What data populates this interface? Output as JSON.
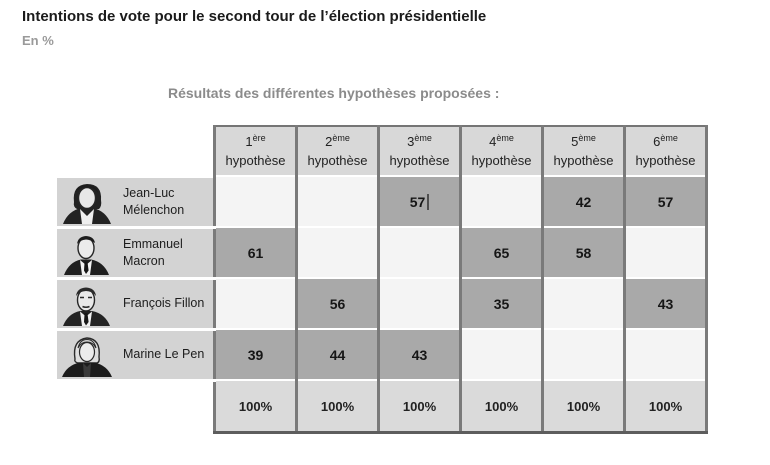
{
  "page": {
    "title": "Intentions de vote pour le second tour de l’élection présidentielle",
    "unit_label": "En %",
    "caption": "Résultats des différentes hypothèses proposées :"
  },
  "table": {
    "columns": [
      {
        "ordinal": "1",
        "suffix": "ère",
        "word": "hypothèse"
      },
      {
        "ordinal": "2",
        "suffix": "ème",
        "word": "hypothèse"
      },
      {
        "ordinal": "3",
        "suffix": "ème",
        "word": "hypothèse"
      },
      {
        "ordinal": "4",
        "suffix": "ème",
        "word": "hypothèse"
      },
      {
        "ordinal": "5",
        "suffix": "ème",
        "word": "hypothèse"
      },
      {
        "ordinal": "6",
        "suffix": "ème",
        "word": "hypothèse"
      }
    ],
    "rows": [
      {
        "name": "Jean-Luc Mélenchon",
        "values": [
          "",
          "",
          "57",
          "",
          "42",
          "57"
        ]
      },
      {
        "name": "Emmanuel Macron",
        "values": [
          "61",
          "",
          "",
          "65",
          "58",
          ""
        ]
      },
      {
        "name": "François Fillon",
        "values": [
          "",
          "56",
          "",
          "35",
          "",
          "43"
        ]
      },
      {
        "name": "Marine Le Pen",
        "values": [
          "39",
          "44",
          "43",
          "",
          "",
          ""
        ]
      }
    ],
    "totals": [
      "100%",
      "100%",
      "100%",
      "100%",
      "100%",
      "100%"
    ],
    "caret": {
      "row": 0,
      "col": 2
    }
  },
  "colors": {
    "filled_cell": "#a9a9a9",
    "empty_cell": "#f4f4f4",
    "label_cell": "#d3d3d3",
    "header_cell": "#d8d8d8",
    "grid_border": "#7a7a7a",
    "muted_text": "#8b8b8b"
  },
  "chart_data": {
    "type": "table",
    "title": "Intentions de vote pour le second tour de l’élection présidentielle",
    "unit": "En %",
    "caption": "Résultats des différentes hypothèses proposées :",
    "columns": [
      "1ère hypothèse",
      "2ème hypothèse",
      "3ème hypothèse",
      "4ème hypothèse",
      "5ème hypothèse",
      "6ème hypothèse"
    ],
    "rows": [
      {
        "candidate": "Jean-Luc Mélenchon",
        "values": [
          null,
          null,
          57,
          null,
          42,
          57
        ]
      },
      {
        "candidate": "Emmanuel Macron",
        "values": [
          61,
          null,
          null,
          65,
          58,
          null
        ]
      },
      {
        "candidate": "François Fillon",
        "values": [
          null,
          56,
          null,
          35,
          null,
          43
        ]
      },
      {
        "candidate": "Marine Le Pen",
        "values": [
          39,
          44,
          43,
          null,
          null,
          null
        ]
      }
    ],
    "column_totals": [
      "100%",
      "100%",
      "100%",
      "100%",
      "100%",
      "100%"
    ]
  }
}
